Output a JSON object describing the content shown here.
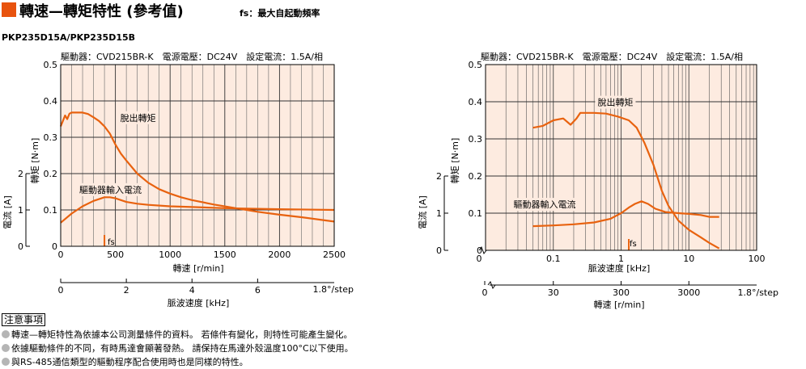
{
  "header": {
    "title": "轉速—轉矩特性 (參考值)",
    "fs_note": "fs：最大自起動頻率",
    "model": "PKP235D15A/PKP235D15B"
  },
  "colors": {
    "accent": "#e8530e",
    "plot_bg": "#fdebe0",
    "torque_line": "#e8620f",
    "current_line": "#e8620f"
  },
  "chart_data": [
    {
      "type": "line",
      "conditions": "驅動器：CVD215BR-K　電源電壓：DC24V　設定電流：1.5A/相",
      "xlabel": "轉速 [r/min]",
      "x_ticks": [
        "0",
        "500",
        "1000",
        "1500",
        "2000",
        "2500"
      ],
      "xlim": [
        0,
        2500
      ],
      "x_scale": "linear",
      "ylabel": "轉矩 [N·m]",
      "ylim": [
        0,
        0.5
      ],
      "y_ticks": [
        "0",
        "0.1",
        "0.2",
        "0.3",
        "0.4",
        "0.5"
      ],
      "y2label": "電流 [A]",
      "y2_ticks": [
        "0",
        "1",
        "2"
      ],
      "y2lim": [
        0,
        5
      ],
      "secondary_x": {
        "label": "脈波速度 [kHz]",
        "ticks": [
          "0",
          "2",
          "4",
          "6"
        ],
        "note": "1.8°/step"
      },
      "fs_label": "fs",
      "fs_x": 400,
      "grid": true,
      "series": [
        {
          "name": "脫出轉矩",
          "axis": "torque",
          "x": [
            0,
            20,
            40,
            60,
            80,
            100,
            130,
            160,
            200,
            250,
            300,
            350,
            400,
            450,
            500,
            550,
            600,
            700,
            800,
            900,
            1000,
            1100,
            1200,
            1400,
            1600,
            1800,
            2000,
            2200,
            2400,
            2500
          ],
          "y": [
            0.33,
            0.345,
            0.36,
            0.35,
            0.365,
            0.368,
            0.368,
            0.368,
            0.368,
            0.364,
            0.355,
            0.345,
            0.33,
            0.31,
            0.28,
            0.255,
            0.236,
            0.2,
            0.175,
            0.157,
            0.145,
            0.135,
            0.127,
            0.115,
            0.105,
            0.095,
            0.087,
            0.08,
            0.072,
            0.068
          ]
        },
        {
          "name": "驅動器輸入電流",
          "axis": "current",
          "x": [
            0,
            100,
            200,
            300,
            400,
            450,
            500,
            600,
            700,
            800,
            1000,
            1200,
            1500,
            1800,
            2000,
            2500
          ],
          "y": [
            0.065,
            0.09,
            0.11,
            0.125,
            0.135,
            0.135,
            0.132,
            0.122,
            0.117,
            0.114,
            0.11,
            0.108,
            0.105,
            0.103,
            0.102,
            0.1
          ]
        }
      ]
    },
    {
      "type": "line",
      "conditions": "驅動器：CVD215BR-K　電源電壓：DC24V　設定電流：1.5A/相",
      "xlabel": "脈波速度 [kHz]",
      "x_ticks": [
        "0",
        "0.1",
        "1",
        "10",
        "100"
      ],
      "xlim": [
        0.01,
        100
      ],
      "x_scale": "log",
      "ylabel": "轉矩 [N·m]",
      "ylim": [
        0,
        0.5
      ],
      "y_ticks": [
        "0",
        "0.1",
        "0.2",
        "0.3",
        "0.4",
        "0.5"
      ],
      "y2label": "電流 [A]",
      "y2_ticks": [
        "0",
        "1",
        "2"
      ],
      "y2lim": [
        0,
        5
      ],
      "secondary_x": {
        "label": "轉速 [r/min]",
        "ticks": [
          "0",
          "30",
          "300",
          "3000"
        ],
        "note": "1.8°/step"
      },
      "fs_label": "fs",
      "fs_x": 1.3,
      "grid": true,
      "series": [
        {
          "name": "脫出轉矩",
          "axis": "torque",
          "x": [
            0.05,
            0.07,
            0.1,
            0.14,
            0.18,
            0.22,
            0.25,
            0.3,
            0.4,
            0.6,
            0.9,
            1.3,
            1.7,
            2.2,
            3,
            4,
            5,
            7,
            10,
            15,
            20,
            28
          ],
          "y": [
            0.33,
            0.335,
            0.35,
            0.355,
            0.338,
            0.355,
            0.37,
            0.37,
            0.37,
            0.368,
            0.36,
            0.35,
            0.33,
            0.29,
            0.23,
            0.16,
            0.12,
            0.08,
            0.055,
            0.035,
            0.02,
            0.005
          ]
        },
        {
          "name": "驅動器輸入電流",
          "axis": "current",
          "x": [
            0.05,
            0.1,
            0.2,
            0.4,
            0.7,
            1.0,
            1.3,
            1.6,
            2.0,
            2.5,
            3.2,
            4.5,
            7,
            10,
            15,
            20,
            28
          ],
          "y": [
            0.065,
            0.067,
            0.07,
            0.075,
            0.085,
            0.1,
            0.115,
            0.125,
            0.132,
            0.125,
            0.112,
            0.103,
            0.1,
            0.098,
            0.095,
            0.09,
            0.09
          ]
        }
      ]
    }
  ],
  "notes": {
    "title": "注意事項",
    "items": [
      "轉速—轉矩特性為依據本公司測量條件的資料。 若條件有變化，則特性可能產生變化。",
      "依據驅動條件的不同，有時馬達會顯著發熱。 請保持在馬達外殼溫度100°C以下使用。",
      "與RS-485通信類型的驅動程序配合使用時也是同樣的特性。"
    ]
  }
}
